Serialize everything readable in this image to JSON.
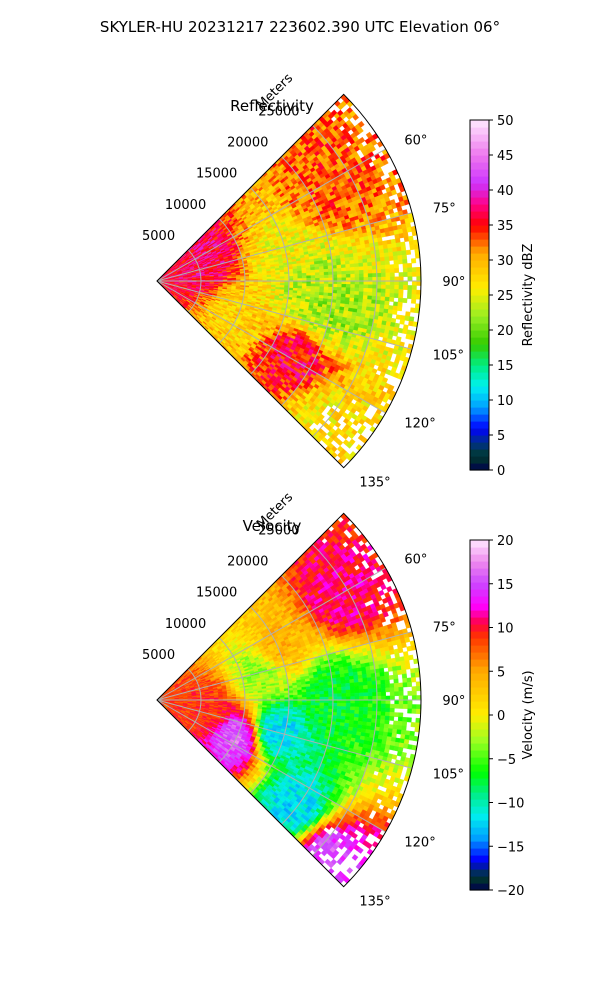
{
  "suptitle": "SKYLER-HU  20231217  223602.390 UTC Elevation 06°",
  "chart_data": [
    {
      "type": "heatmap",
      "subtype": "polar-sector (PPI radar sweep)",
      "title": "Reflectivity",
      "radial_axis_label": "Meters",
      "radial_ticks": [
        5000,
        10000,
        15000,
        20000,
        25000
      ],
      "radial_tick_labels": [
        "5000",
        "10000",
        "15000",
        "20000",
        "25000"
      ],
      "rmax": 30000,
      "azimuth_range_deg": [
        45,
        135
      ],
      "azimuth_ticks": [
        60,
        75,
        90,
        105,
        120,
        135
      ],
      "azimuth_tick_labels": [
        "60°",
        "75°",
        "90°",
        "105°",
        "120°",
        "135°"
      ],
      "grid": true,
      "colorbar": {
        "label": "Reflectivity dBZ",
        "range": [
          0,
          50
        ],
        "ticks": [
          0,
          5,
          10,
          15,
          20,
          25,
          30,
          35,
          40,
          45,
          50
        ],
        "tick_labels": [
          "0",
          "5",
          "10",
          "15",
          "20",
          "25",
          "30",
          "35",
          "40",
          "45",
          "50"
        ],
        "stops": [
          {
            "v": 0,
            "c": "#00004d"
          },
          {
            "v": 2,
            "c": "#003a2a"
          },
          {
            "v": 4,
            "c": "#00308a"
          },
          {
            "v": 6,
            "c": "#0000ff"
          },
          {
            "v": 9,
            "c": "#00a0ff"
          },
          {
            "v": 12,
            "c": "#00f0f0"
          },
          {
            "v": 15,
            "c": "#00ee80"
          },
          {
            "v": 18,
            "c": "#33cc00"
          },
          {
            "v": 22,
            "c": "#99ee22"
          },
          {
            "v": 26,
            "c": "#ffee00"
          },
          {
            "v": 31,
            "c": "#ffaa00"
          },
          {
            "v": 35,
            "c": "#ff0000"
          },
          {
            "v": 38,
            "c": "#ff0088"
          },
          {
            "v": 41,
            "c": "#cc33ff"
          },
          {
            "v": 45,
            "c": "#ee77ee"
          },
          {
            "v": 50,
            "c": "#ffe8ff"
          }
        ]
      },
      "field_features": [
        {
          "az_deg": 62,
          "r_m": 22000,
          "value": 33
        },
        {
          "az_deg": 70,
          "r_m": 6000,
          "value": 37
        },
        {
          "az_deg": 80,
          "r_m": 15000,
          "value": 26
        },
        {
          "az_deg": 90,
          "r_m": 17000,
          "value": 23
        },
        {
          "az_deg": 100,
          "r_m": 20000,
          "value": 22
        },
        {
          "az_deg": 110,
          "r_m": 10000,
          "value": 28
        },
        {
          "az_deg": 120,
          "r_m": 18000,
          "value": 36
        },
        {
          "az_deg": 130,
          "r_m": 24000,
          "value": 27
        }
      ]
    },
    {
      "type": "heatmap",
      "subtype": "polar-sector (PPI radar sweep)",
      "title": "Velocity",
      "radial_axis_label": "Meters",
      "radial_ticks": [
        5000,
        10000,
        15000,
        20000,
        25000
      ],
      "radial_tick_labels": [
        "5000",
        "10000",
        "15000",
        "20000",
        "25000"
      ],
      "rmax": 30000,
      "azimuth_range_deg": [
        45,
        135
      ],
      "azimuth_ticks": [
        60,
        75,
        90,
        105,
        120,
        135
      ],
      "azimuth_tick_labels": [
        "60°",
        "75°",
        "90°",
        "105°",
        "120°",
        "135°"
      ],
      "grid": true,
      "colorbar": {
        "label": "Velocity (m/s)",
        "range": [
          -20,
          20
        ],
        "ticks": [
          -20,
          -15,
          -10,
          -5,
          0,
          5,
          10,
          15,
          20
        ],
        "tick_labels": [
          "−20",
          "−15",
          "−10",
          "−5",
          "0",
          "5",
          "10",
          "15",
          "20"
        ],
        "stops": [
          {
            "v": -20,
            "c": "#00004d"
          },
          {
            "v": -18.5,
            "c": "#003a2a"
          },
          {
            "v": -16.5,
            "c": "#0000ff"
          },
          {
            "v": -14,
            "c": "#00a0ff"
          },
          {
            "v": -11.5,
            "c": "#00eeee"
          },
          {
            "v": -9,
            "c": "#00ee88"
          },
          {
            "v": -6.5,
            "c": "#00ff00"
          },
          {
            "v": -3,
            "c": "#99ff22"
          },
          {
            "v": 0,
            "c": "#ffee00"
          },
          {
            "v": 5,
            "c": "#ffaa00"
          },
          {
            "v": 9,
            "c": "#ff3300"
          },
          {
            "v": 10.5,
            "c": "#ff0044"
          },
          {
            "v": 12.5,
            "c": "#ff00ff"
          },
          {
            "v": 15,
            "c": "#cc44ff"
          },
          {
            "v": 17.5,
            "c": "#ee88ee"
          },
          {
            "v": 20,
            "c": "#ffe8ff"
          }
        ]
      },
      "field_features": [
        {
          "az_deg": 60,
          "r_m": 24000,
          "value": 11
        },
        {
          "az_deg": 66,
          "r_m": 15000,
          "value": 4
        },
        {
          "az_deg": 75,
          "r_m": 12000,
          "value": -3
        },
        {
          "az_deg": 88,
          "r_m": 20000,
          "value": -7
        },
        {
          "az_deg": 100,
          "r_m": 6000,
          "value": 9
        },
        {
          "az_deg": 105,
          "r_m": 14000,
          "value": -12
        },
        {
          "az_deg": 115,
          "r_m": 10000,
          "value": 16
        },
        {
          "az_deg": 128,
          "r_m": 20000,
          "value": -12
        },
        {
          "az_deg": 132,
          "r_m": 26000,
          "value": 15
        }
      ]
    }
  ]
}
